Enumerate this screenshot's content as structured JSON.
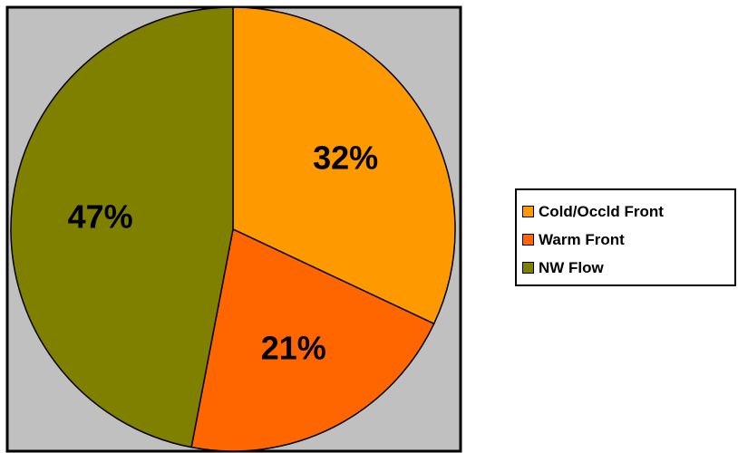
{
  "chart_data": {
    "type": "pie",
    "title": "",
    "slices": [
      {
        "name": "Cold/Occld Front",
        "value": 32,
        "label": "32%",
        "color": "#FF9900"
      },
      {
        "name": "Warm Front",
        "value": 21,
        "label": "21%",
        "color": "#FF6600"
      },
      {
        "name": "NW Flow",
        "value": 47,
        "label": "47%",
        "color": "#808000"
      }
    ],
    "plot_background": "#C0C0C0",
    "legend_placement": "right"
  }
}
